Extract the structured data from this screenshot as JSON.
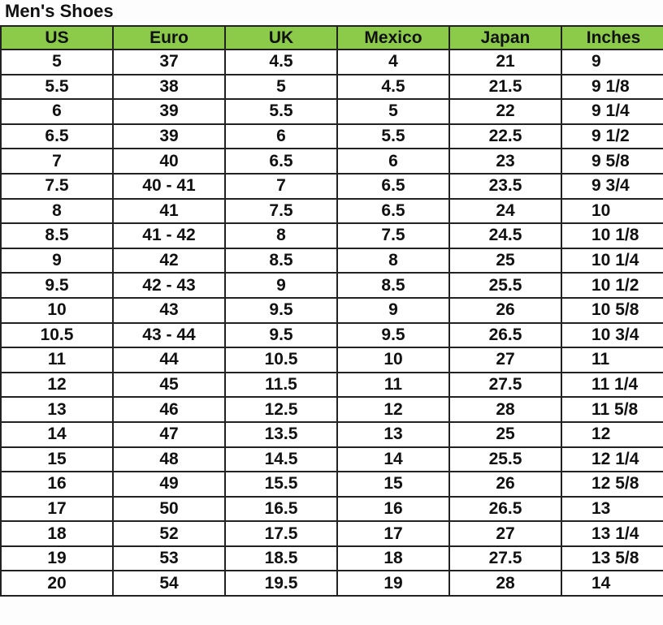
{
  "title": "Men's Shoes",
  "colors": {
    "header_bg": "#8ccb4a",
    "border": "#222222"
  },
  "headers": [
    "US",
    "Euro",
    "UK",
    "Mexico",
    "Japan",
    "Inches"
  ],
  "rows": [
    [
      "5",
      "37",
      "4.5",
      "4",
      "21",
      "9"
    ],
    [
      "5.5",
      "38",
      "5",
      "4.5",
      "21.5",
      "9 1/8"
    ],
    [
      "6",
      "39",
      "5.5",
      "5",
      "22",
      "9 1/4"
    ],
    [
      "6.5",
      "39",
      "6",
      "5.5",
      "22.5",
      "9 1/2"
    ],
    [
      "7",
      "40",
      "6.5",
      "6",
      "23",
      "9 5/8"
    ],
    [
      "7.5",
      "40 - 41",
      "7",
      "6.5",
      "23.5",
      "9 3/4"
    ],
    [
      "8",
      "41",
      "7.5",
      "6.5",
      "24",
      "10"
    ],
    [
      "8.5",
      "41 - 42",
      "8",
      "7.5",
      "24.5",
      "10 1/8"
    ],
    [
      "9",
      "42",
      "8.5",
      "8",
      "25",
      "10 1/4"
    ],
    [
      "9.5",
      "42 - 43",
      "9",
      "8.5",
      "25.5",
      "10 1/2"
    ],
    [
      "10",
      "43",
      "9.5",
      "9",
      "26",
      "10 5/8"
    ],
    [
      "10.5",
      "43 - 44",
      "9.5",
      "9.5",
      "26.5",
      "10 3/4"
    ],
    [
      "11",
      "44",
      "10.5",
      "10",
      "27",
      "11"
    ],
    [
      "12",
      "45",
      "11.5",
      "11",
      "27.5",
      "11 1/4"
    ],
    [
      "13",
      "46",
      "12.5",
      "12",
      "28",
      "11 5/8"
    ],
    [
      "14",
      "47",
      "13.5",
      "13",
      "25",
      "12"
    ],
    [
      "15",
      "48",
      "14.5",
      "14",
      "25.5",
      "12 1/4"
    ],
    [
      "16",
      "49",
      "15.5",
      "15",
      "26",
      "12 5/8"
    ],
    [
      "17",
      "50",
      "16.5",
      "16",
      "26.5",
      "13"
    ],
    [
      "18",
      "52",
      "17.5",
      "17",
      "27",
      "13 1/4"
    ],
    [
      "19",
      "53",
      "18.5",
      "18",
      "27.5",
      "13 5/8"
    ],
    [
      "20",
      "54",
      "19.5",
      "19",
      "28",
      "14"
    ]
  ]
}
